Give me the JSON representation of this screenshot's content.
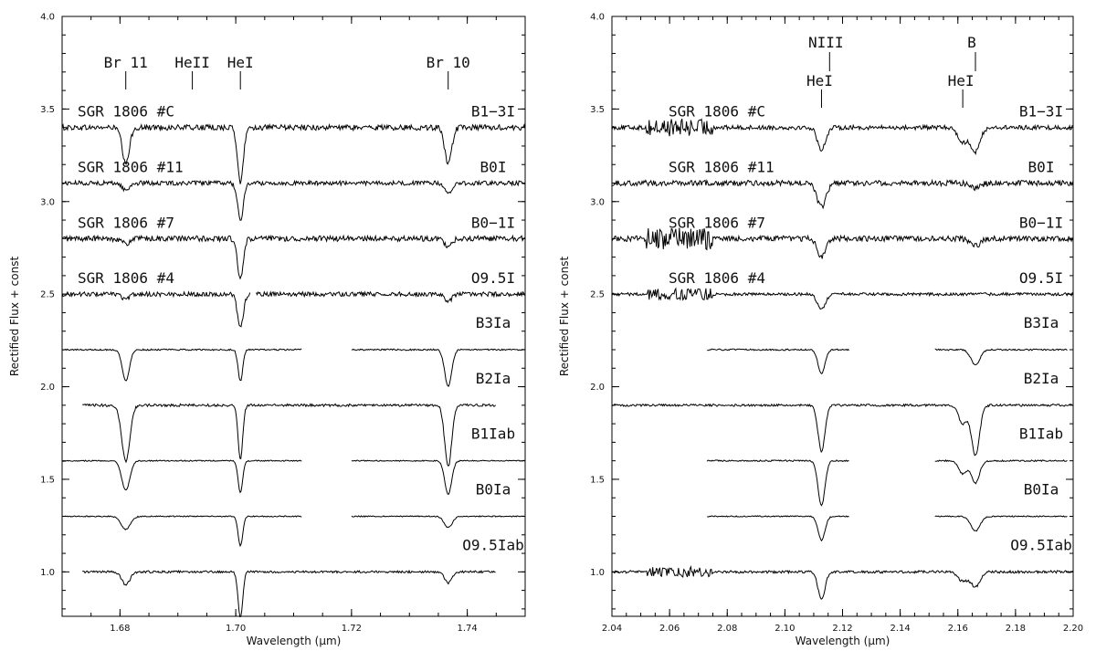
{
  "chart_data": [
    {
      "type": "line",
      "xlabel": "Wavelength (μm)",
      "ylabel": "Rectified Flux + const",
      "xlim": [
        1.67,
        1.75
      ],
      "ylim": [
        0.76,
        4.0
      ],
      "xticks": [
        "1.68",
        "1.70",
        "1.72",
        "1.74"
      ],
      "yticks": [
        "1.0",
        "1.5",
        "2.0",
        "2.5",
        "3.0",
        "3.5",
        "4.0"
      ],
      "line_ids": [
        {
          "label": "Br 11",
          "wavelength": 1.681
        },
        {
          "label": "HeII",
          "wavelength": 1.6925
        },
        {
          "label": "HeI",
          "wavelength": 1.7008
        },
        {
          "label": "Br 10",
          "wavelength": 1.7367
        }
      ],
      "series": [
        {
          "name": "SGR 1806 #C",
          "spectral_type": "B1−3I",
          "level": 3.4,
          "x_range": [
            1.67,
            1.75
          ],
          "gaps": [],
          "lines": [
            {
              "x": 1.681,
              "depth": 0.2,
              "width": 0.0006
            },
            {
              "x": 1.7008,
              "depth": 0.3,
              "width": 0.0005
            },
            {
              "x": 1.7367,
              "depth": 0.2,
              "width": 0.0006
            }
          ],
          "noise": 0.015
        },
        {
          "name": "SGR 1806 #11",
          "spectral_type": "B0I",
          "level": 3.1,
          "x_range": [
            1.67,
            1.75
          ],
          "gaps": [],
          "lines": [
            {
              "x": 1.681,
              "depth": 0.04,
              "width": 0.0006
            },
            {
              "x": 1.7008,
              "depth": 0.2,
              "width": 0.0005
            },
            {
              "x": 1.7367,
              "depth": 0.06,
              "width": 0.0006
            }
          ],
          "noise": 0.012
        },
        {
          "name": "SGR 1806 #7",
          "spectral_type": "B0−1I",
          "level": 2.8,
          "x_range": [
            1.67,
            1.75
          ],
          "gaps": [],
          "lines": [
            {
              "x": 1.681,
              "depth": 0.03,
              "width": 0.0006
            },
            {
              "x": 1.7008,
              "depth": 0.22,
              "width": 0.0005
            },
            {
              "x": 1.7367,
              "depth": 0.05,
              "width": 0.0006
            }
          ],
          "noise": 0.015
        },
        {
          "name": "SGR 1806 #4",
          "spectral_type": "O9.5I",
          "level": 2.5,
          "x_range": [
            1.67,
            1.75
          ],
          "gaps": [
            [
              1.7025,
              1.7035
            ]
          ],
          "lines": [
            {
              "x": 1.681,
              "depth": 0.03,
              "width": 0.0006
            },
            {
              "x": 1.7008,
              "depth": 0.18,
              "width": 0.0005
            },
            {
              "x": 1.7367,
              "depth": 0.04,
              "width": 0.0006
            }
          ],
          "noise": 0.012
        },
        {
          "name": "",
          "spectral_type": "B3Ia",
          "level": 2.2,
          "x_range": [
            1.67,
            1.75
          ],
          "gaps": [
            [
              1.7115,
              1.72
            ]
          ],
          "lines": [
            {
              "x": 1.681,
              "depth": 0.17,
              "width": 0.0006
            },
            {
              "x": 1.7008,
              "depth": 0.17,
              "width": 0.0004
            },
            {
              "x": 1.7367,
              "depth": 0.2,
              "width": 0.0006
            }
          ],
          "noise": 0.004
        },
        {
          "name": "",
          "spectral_type": "B2Ia",
          "level": 1.9,
          "x_range": [
            1.6735,
            1.745
          ],
          "gaps": [],
          "lines": [
            {
              "x": 1.681,
              "depth": 0.3,
              "width": 0.0007
            },
            {
              "x": 1.7008,
              "depth": 0.29,
              "width": 0.0004
            },
            {
              "x": 1.7367,
              "depth": 0.33,
              "width": 0.0006
            }
          ],
          "noise": 0.007
        },
        {
          "name": "",
          "spectral_type": "B1Iab",
          "level": 1.6,
          "x_range": [
            1.67,
            1.75
          ],
          "gaps": [
            [
              1.7115,
              1.72
            ]
          ],
          "lines": [
            {
              "x": 1.681,
              "depth": 0.16,
              "width": 0.0007
            },
            {
              "x": 1.7008,
              "depth": 0.17,
              "width": 0.0004
            },
            {
              "x": 1.7367,
              "depth": 0.18,
              "width": 0.0006
            }
          ],
          "noise": 0.003
        },
        {
          "name": "",
          "spectral_type": "B0Ia",
          "level": 1.3,
          "x_range": [
            1.67,
            1.75
          ],
          "gaps": [
            [
              1.7115,
              1.72
            ]
          ],
          "lines": [
            {
              "x": 1.681,
              "depth": 0.07,
              "width": 0.0008
            },
            {
              "x": 1.7008,
              "depth": 0.16,
              "width": 0.0004
            },
            {
              "x": 1.7367,
              "depth": 0.06,
              "width": 0.0007
            }
          ],
          "noise": 0.003
        },
        {
          "name": "",
          "spectral_type": "O9.5Iab",
          "level": 1.0,
          "x_range": [
            1.6735,
            1.745
          ],
          "gaps": [],
          "lines": [
            {
              "x": 1.681,
              "depth": 0.07,
              "width": 0.0007
            },
            {
              "x": 1.7008,
              "depth": 0.25,
              "width": 0.0004
            },
            {
              "x": 1.7367,
              "depth": 0.06,
              "width": 0.0006
            }
          ],
          "noise": 0.006
        }
      ]
    },
    {
      "type": "line",
      "xlabel": "Wavelength (μm)",
      "ylabel": "Rectified Flux + const",
      "xlim": [
        2.04,
        2.2
      ],
      "ylim": [
        0.76,
        4.0
      ],
      "xticks": [
        "2.04",
        "2.06",
        "2.08",
        "2.10",
        "2.12",
        "2.14",
        "2.16",
        "2.18",
        "2.20"
      ],
      "yticks": [
        "1.0",
        "1.5",
        "2.0",
        "2.5",
        "3.0",
        "3.5",
        "4.0"
      ],
      "line_ids": [
        {
          "label": "NIII",
          "wavelength": 2.1155,
          "stacked_over": "HeI",
          "stacked_wavelength": 2.1127
        },
        {
          "label": "B",
          "wavelength": 2.1661,
          "stacked_over": "HeI",
          "stacked_wavelength": 2.1617
        }
      ],
      "series": [
        {
          "name": "SGR 1806 #C",
          "spectral_type": "B1−3I",
          "level": 3.4,
          "x_range": [
            2.04,
            2.2
          ],
          "gaps": [],
          "lines": [
            {
              "x": 2.1127,
              "depth": 0.12,
              "width": 0.0007
            },
            {
              "x": 2.1617,
              "depth": 0.08,
              "width": 0.0008
            },
            {
              "x": 2.1661,
              "depth": 0.13,
              "width": 0.0008
            }
          ],
          "noise": 0.012,
          "feature": "2.06 noisy"
        },
        {
          "name": "SGR 1806 #11",
          "spectral_type": "B0I",
          "level": 3.1,
          "x_range": [
            2.04,
            2.2
          ],
          "gaps": [],
          "lines": [
            {
              "x": 2.1127,
              "depth": 0.13,
              "width": 0.0008
            },
            {
              "x": 2.1661,
              "depth": 0.03,
              "width": 0.0008
            }
          ],
          "noise": 0.015
        },
        {
          "name": "SGR 1806 #7",
          "spectral_type": "B0−1I",
          "level": 2.8,
          "x_range": [
            2.04,
            2.2
          ],
          "gaps": [],
          "lines": [
            {
              "x": 2.1127,
              "depth": 0.1,
              "width": 0.0007
            },
            {
              "x": 2.1661,
              "depth": 0.04,
              "width": 0.0008
            }
          ],
          "noise": 0.015,
          "feature": "2.06 noisy"
        },
        {
          "name": "SGR 1806 #4",
          "spectral_type": "O9.5I",
          "level": 2.5,
          "x_range": [
            2.04,
            2.2
          ],
          "gaps": [],
          "lines": [
            {
              "x": 2.1127,
              "depth": 0.08,
              "width": 0.0007
            }
          ],
          "noise": 0.008,
          "feature": "2.06 noisy"
        },
        {
          "name": "",
          "spectral_type": "B3Ia",
          "level": 2.2,
          "x_range": [
            2.073,
            2.198
          ],
          "gaps": [
            [
              2.1225,
              2.152
            ]
          ],
          "lines": [
            {
              "x": 2.1127,
              "depth": 0.13,
              "width": 0.0006
            },
            {
              "x": 2.1661,
              "depth": 0.08,
              "width": 0.0008
            }
          ],
          "noise": 0.004
        },
        {
          "name": "",
          "spectral_type": "B2Ia",
          "level": 1.9,
          "x_range": [
            2.04,
            2.2
          ],
          "gaps": [],
          "lines": [
            {
              "x": 2.1127,
              "depth": 0.25,
              "width": 0.0006
            },
            {
              "x": 2.1617,
              "depth": 0.1,
              "width": 0.0007
            },
            {
              "x": 2.1661,
              "depth": 0.27,
              "width": 0.0007
            }
          ],
          "noise": 0.006
        },
        {
          "name": "",
          "spectral_type": "B1Iab",
          "level": 1.6,
          "x_range": [
            2.073,
            2.198
          ],
          "gaps": [
            [
              2.1225,
              2.152
            ]
          ],
          "lines": [
            {
              "x": 2.1127,
              "depth": 0.24,
              "width": 0.0006
            },
            {
              "x": 2.1617,
              "depth": 0.07,
              "width": 0.0007
            },
            {
              "x": 2.1661,
              "depth": 0.12,
              "width": 0.0007
            }
          ],
          "noise": 0.004
        },
        {
          "name": "",
          "spectral_type": "B0Ia",
          "level": 1.3,
          "x_range": [
            2.073,
            2.198
          ],
          "gaps": [
            [
              2.1225,
              2.152
            ]
          ],
          "lines": [
            {
              "x": 2.1127,
              "depth": 0.13,
              "width": 0.0006
            },
            {
              "x": 2.1661,
              "depth": 0.08,
              "width": 0.0008
            }
          ],
          "noise": 0.003
        },
        {
          "name": "",
          "spectral_type": "O9.5Iab",
          "level": 1.0,
          "x_range": [
            2.04,
            2.2
          ],
          "gaps": [],
          "lines": [
            {
              "x": 2.1127,
              "depth": 0.15,
              "width": 0.0006
            },
            {
              "x": 2.1617,
              "depth": 0.05,
              "width": 0.0008
            },
            {
              "x": 2.1661,
              "depth": 0.08,
              "width": 0.0008
            }
          ],
          "noise": 0.007,
          "feature": "2.06 noisy"
        }
      ]
    }
  ]
}
